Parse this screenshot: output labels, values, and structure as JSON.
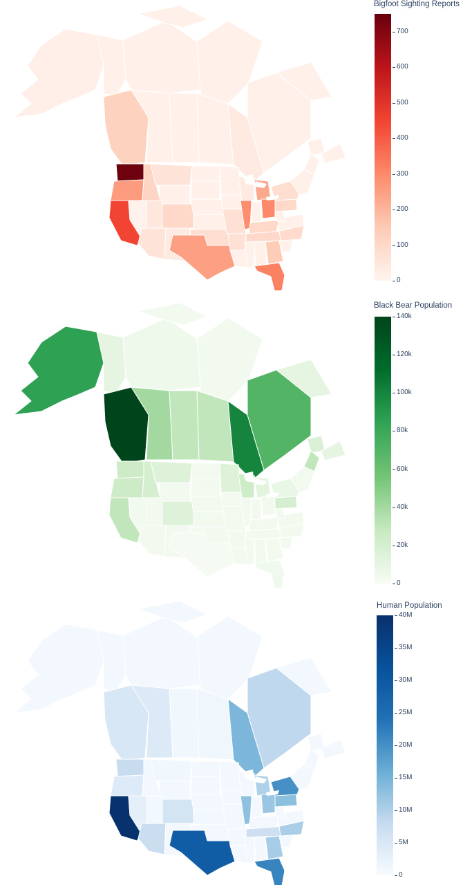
{
  "chart_data": [
    {
      "type": "choropleth",
      "colorscale": "Reds",
      "colorbar_title": "Bigfoot Sighting Reports",
      "range": [
        0,
        750
      ],
      "tick_labels": [
        "700",
        "600",
        "500",
        "400",
        "300",
        "200",
        "100",
        "0"
      ],
      "tick_values": [
        700,
        600,
        500,
        400,
        300,
        200,
        100,
        0
      ],
      "colors": [
        "#fff5f0",
        "#fdcab4",
        "#fc8a6a",
        "#f14432",
        "#bc141a",
        "#67000d"
      ],
      "regions": [
        {
          "name": "Washington",
          "value": 740
        },
        {
          "name": "California",
          "value": 450
        },
        {
          "name": "Florida",
          "value": 320
        },
        {
          "name": "Ohio",
          "value": 300
        },
        {
          "name": "Illinois",
          "value": 290
        },
        {
          "name": "Oregon",
          "value": 260
        },
        {
          "name": "Texas",
          "value": 250
        },
        {
          "name": "Michigan",
          "value": 230
        },
        {
          "name": "Georgia",
          "value": 140
        },
        {
          "name": "Idaho",
          "value": 110
        },
        {
          "name": "Colorado",
          "value": 100
        },
        {
          "name": "Kentucky",
          "value": 100
        },
        {
          "name": "Tennessee",
          "value": 100
        },
        {
          "name": "North Carolina",
          "value": 90
        },
        {
          "name": "British Columbia",
          "value": 120
        },
        {
          "name": "Montana",
          "value": 60
        },
        {
          "name": "Oklahoma",
          "value": 80
        },
        {
          "name": "Arizona",
          "value": 60
        },
        {
          "name": "New York",
          "value": 80
        },
        {
          "name": "Pennsylvania",
          "value": 100
        },
        {
          "name": "Ontario",
          "value": 40
        },
        {
          "name": "Wisconsin",
          "value": 40
        },
        {
          "name": "Missouri",
          "value": 70
        },
        {
          "name": "Arkansas",
          "value": 70
        },
        {
          "name": "Utah",
          "value": 50
        },
        {
          "name": "Nevada",
          "value": 10
        },
        {
          "name": "New Mexico",
          "value": 40
        },
        {
          "name": "Alaska",
          "value": 20
        }
      ]
    },
    {
      "type": "choropleth",
      "colorscale": "Greens",
      "colorbar_title": "Black Bear Population",
      "range": [
        0,
        140000
      ],
      "tick_labels": [
        "140k",
        "120k",
        "100k",
        "80k",
        "60k",
        "40k",
        "20k",
        "0"
      ],
      "tick_values": [
        140000,
        120000,
        100000,
        80000,
        60000,
        40000,
        20000,
        0
      ],
      "colors": [
        "#f7fcf5",
        "#c7e9c0",
        "#74c476",
        "#31a354",
        "#006d2c",
        "#00441b"
      ],
      "regions": [
        {
          "name": "British Columbia",
          "value": 140000
        },
        {
          "name": "Ontario",
          "value": 100000
        },
        {
          "name": "Alaska",
          "value": 85000
        },
        {
          "name": "Quebec",
          "value": 70000
        },
        {
          "name": "Yukon",
          "value": 10000
        },
        {
          "name": "Northwest Territories",
          "value": 5000
        },
        {
          "name": "Alberta",
          "value": 40000
        },
        {
          "name": "Saskatchewan",
          "value": 30000
        },
        {
          "name": "Manitoba",
          "value": 30000
        },
        {
          "name": "Newfoundland and Labrador",
          "value": 10000
        },
        {
          "name": "New Brunswick",
          "value": 17000
        },
        {
          "name": "Nova Scotia",
          "value": 10000
        },
        {
          "name": "Washington",
          "value": 25000
        },
        {
          "name": "Oregon",
          "value": 25000
        },
        {
          "name": "California",
          "value": 30000
        },
        {
          "name": "Idaho",
          "value": 20000
        },
        {
          "name": "Montana",
          "value": 15000
        },
        {
          "name": "Minnesota",
          "value": 15000
        },
        {
          "name": "Wisconsin",
          "value": 24000
        },
        {
          "name": "Michigan",
          "value": 12000
        },
        {
          "name": "Maine",
          "value": 30000
        },
        {
          "name": "Pennsylvania",
          "value": 20000
        },
        {
          "name": "New York",
          "value": 8000
        },
        {
          "name": "Colorado",
          "value": 15000
        },
        {
          "name": "Texas",
          "value": 1000
        },
        {
          "name": "Florida",
          "value": 4000
        }
      ]
    },
    {
      "type": "choropleth",
      "colorscale": "Blues",
      "colorbar_title": "Human Population",
      "range": [
        0,
        40000000
      ],
      "tick_labels": [
        "40M",
        "35M",
        "30M",
        "25M",
        "20M",
        "15M",
        "10M",
        "5M",
        "0"
      ],
      "tick_values": [
        40000000,
        35000000,
        30000000,
        25000000,
        20000000,
        15000000,
        10000000,
        5000000,
        0
      ],
      "colors": [
        "#f7fbff",
        "#c6dbef",
        "#6baed6",
        "#2171b5",
        "#08519c",
        "#08306b"
      ],
      "regions": [
        {
          "name": "California",
          "value": 39500000
        },
        {
          "name": "Texas",
          "value": 29000000
        },
        {
          "name": "Florida",
          "value": 21500000
        },
        {
          "name": "New York",
          "value": 20000000
        },
        {
          "name": "Ontario",
          "value": 14500000
        },
        {
          "name": "Pennsylvania",
          "value": 13000000
        },
        {
          "name": "Illinois",
          "value": 12800000
        },
        {
          "name": "Ohio",
          "value": 11800000
        },
        {
          "name": "Georgia",
          "value": 10700000
        },
        {
          "name": "North Carolina",
          "value": 10400000
        },
        {
          "name": "Michigan",
          "value": 10000000
        },
        {
          "name": "Quebec",
          "value": 8500000
        },
        {
          "name": "Washington",
          "value": 7700000
        },
        {
          "name": "Arizona",
          "value": 7300000
        },
        {
          "name": "Tennessee",
          "value": 6900000
        },
        {
          "name": "British Columbia",
          "value": 5100000
        },
        {
          "name": "Alberta",
          "value": 4400000
        },
        {
          "name": "Oregon",
          "value": 4200000
        },
        {
          "name": "Colorado",
          "value": 5800000
        },
        {
          "name": "Manitoba",
          "value": 1300000
        },
        {
          "name": "Saskatchewan",
          "value": 1100000
        },
        {
          "name": "Alaska",
          "value": 730000
        },
        {
          "name": "Montana",
          "value": 1100000
        },
        {
          "name": "Nevada",
          "value": 3100000
        }
      ]
    }
  ]
}
